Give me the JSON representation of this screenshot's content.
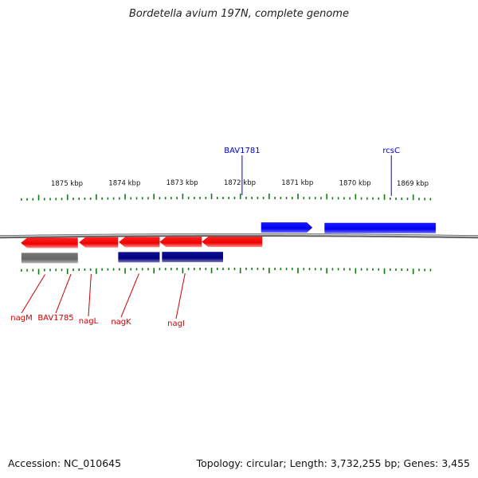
{
  "title": "Bordetella avium 197N, complete genome",
  "accession_label": "Accession: NC_010645",
  "summary_label": "Topology: circular; Length: 3,732,255 bp; Genes: 3,455",
  "colors": {
    "forward_gene": "#0000ee",
    "reverse_gene": "#ee0000",
    "reverse_cds": "#000080",
    "pseudo": "#666666",
    "tick": "#117a11",
    "forward_label": "#0000cc",
    "reverse_label": "#cc0000",
    "backbone": "#888888"
  },
  "scale": {
    "unit": "kbp",
    "labels": [
      "1875 kbp",
      "1874 kbp",
      "1873 kbp",
      "1872 kbp",
      "1871 kbp",
      "1870 kbp",
      "1869 kbp"
    ],
    "label_positions_kbp": [
      1875,
      1874,
      1873,
      1872,
      1871,
      1870,
      1869
    ],
    "major_ticks_kbp": [
      1875.5,
      1875,
      1874.5,
      1874,
      1873.5,
      1873,
      1872.5,
      1872,
      1871.5,
      1871,
      1870.5,
      1870,
      1869.5,
      1869,
      1868.5
    ],
    "minor_step_kbp": 0.1,
    "visible_range_kbp": [
      1875.79,
      1868.65
    ]
  },
  "forward_features": [
    {
      "name": "",
      "start_kbp": 1871.63,
      "end_kbp": 1870.74,
      "kind": "gene"
    },
    {
      "name": "",
      "start_kbp": 1870.53,
      "end_kbp": 1868.6,
      "kind": "gene"
    }
  ],
  "reverse_genes": [
    {
      "name": "",
      "start_kbp": 1875.8,
      "end_kbp": 1874.81
    },
    {
      "name": "",
      "start_kbp": 1874.79,
      "end_kbp": 1874.11
    },
    {
      "name": "",
      "start_kbp": 1874.1,
      "end_kbp": 1873.39
    },
    {
      "name": "",
      "start_kbp": 1873.39,
      "end_kbp": 1872.66
    },
    {
      "name": "",
      "start_kbp": 1872.66,
      "end_kbp": 1871.61
    }
  ],
  "reverse_cds": [
    {
      "name": "",
      "start_kbp": 1875.79,
      "end_kbp": 1874.81,
      "kind": "pseudo"
    },
    {
      "name": "",
      "start_kbp": 1874.11,
      "end_kbp": 1873.39,
      "kind": "cds"
    },
    {
      "name": "",
      "start_kbp": 1873.35,
      "end_kbp": 1872.29,
      "kind": "cds"
    }
  ],
  "forward_labels": [
    {
      "text": "BAV1781",
      "pos_kbp": 1871.96
    },
    {
      "text": "rcsC",
      "pos_kbp": 1869.37
    }
  ],
  "reverse_labels": [
    {
      "text": "nagM",
      "pos_kbp": 1875.38
    },
    {
      "text": "BAV1785",
      "pos_kbp": 1874.93
    },
    {
      "text": "nagL",
      "pos_kbp": 1874.58
    },
    {
      "text": "nagK",
      "pos_kbp": 1873.75
    },
    {
      "text": "nagI",
      "pos_kbp": 1872.95
    }
  ]
}
